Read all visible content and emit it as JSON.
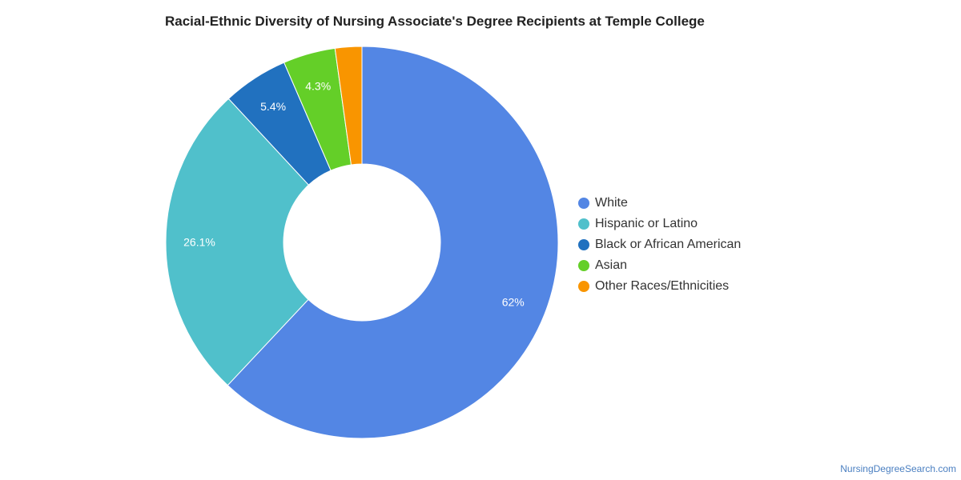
{
  "chart_data": {
    "type": "pie",
    "title": "Racial-Ethnic Diversity of Nursing Associate's Degree Recipients at Temple College",
    "donut": true,
    "legend_position": "right",
    "categories": [
      "White",
      "Hispanic or Latino",
      "Black or African American",
      "Asian",
      "Other Races/Ethnicities"
    ],
    "values": [
      62,
      26.1,
      5.4,
      4.3,
      2.2
    ],
    "data_labels": [
      "62%",
      "26.1%",
      "5.4%",
      "4.3%",
      ""
    ],
    "colors": [
      "#5386e4",
      "#50c0cb",
      "#2171bf",
      "#64cf28",
      "#f99500"
    ]
  },
  "source": "NursingDegreeSearch.com"
}
